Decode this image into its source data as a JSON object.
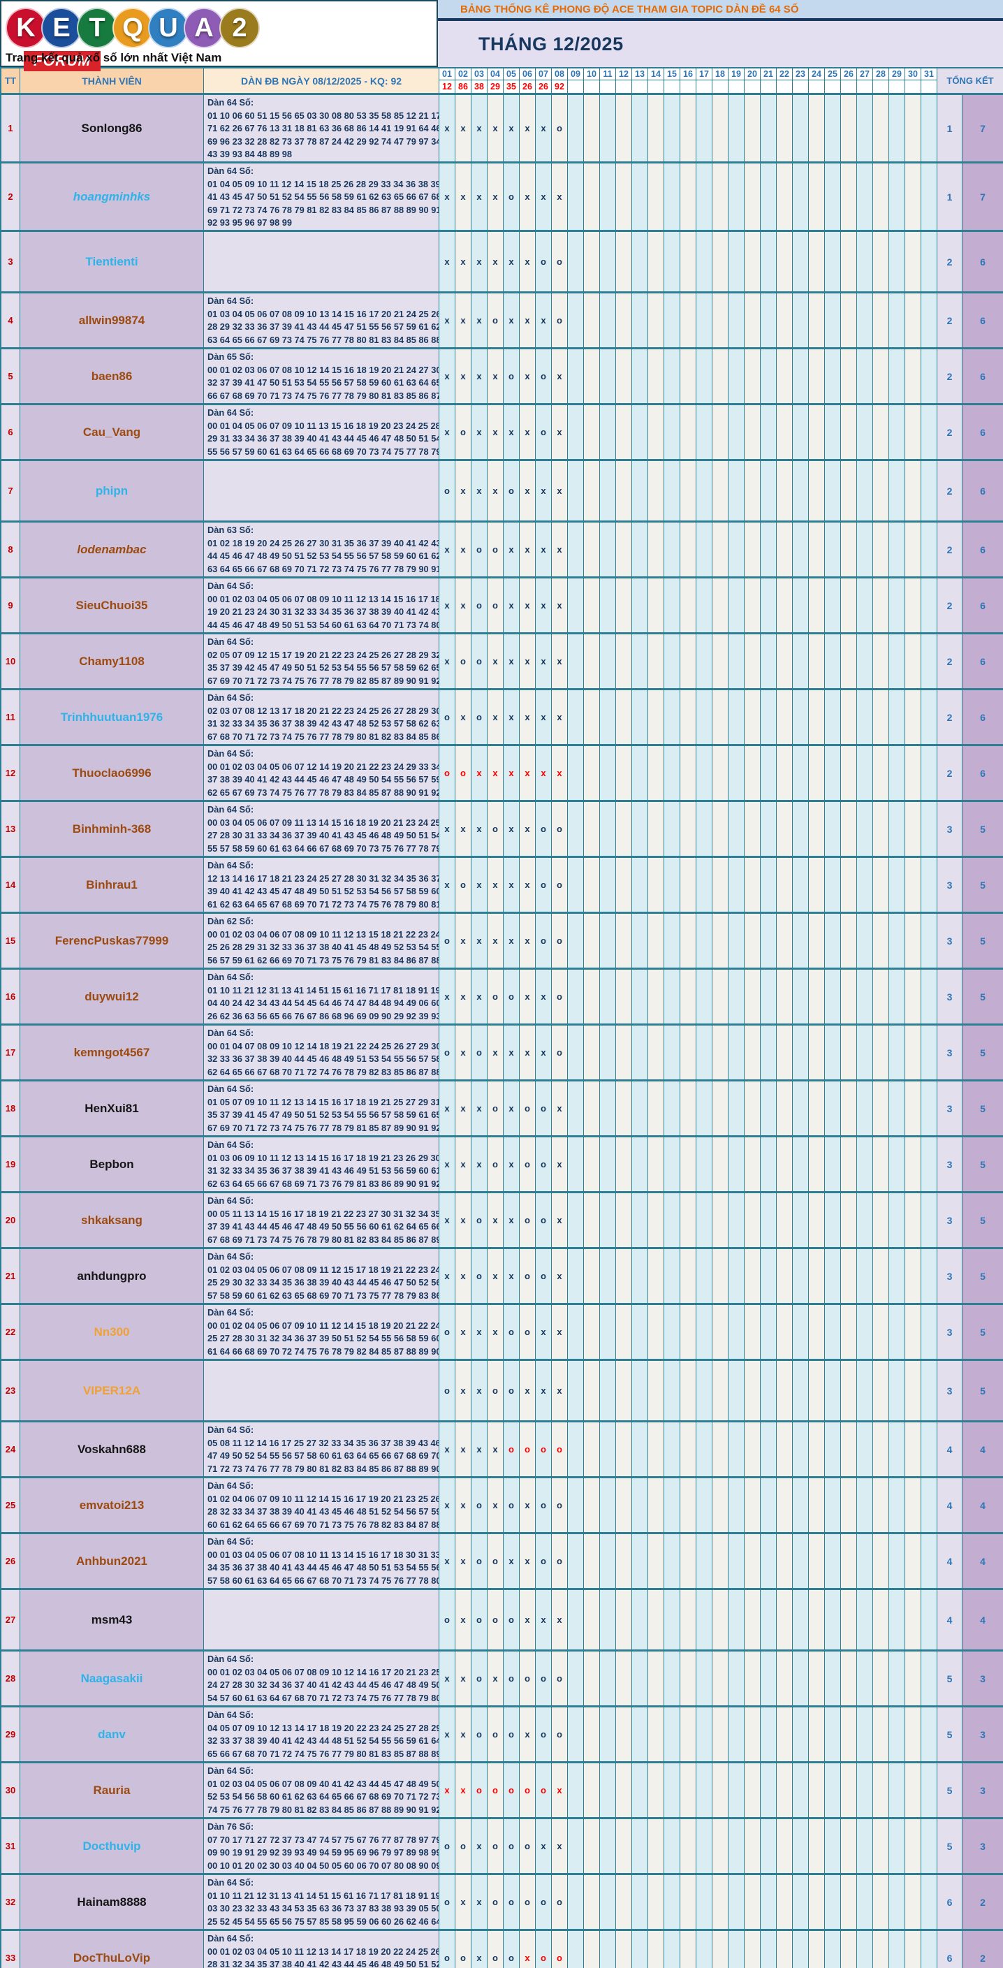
{
  "logo": {
    "letters": [
      {
        "ch": "K",
        "bg": "#c8102e"
      },
      {
        "ch": "E",
        "bg": "#1b4f9c"
      },
      {
        "ch": "T",
        "bg": "#177a3e"
      },
      {
        "ch": "Q",
        "bg": "#e89b1f"
      },
      {
        "ch": "U",
        "bg": "#2f7fc1"
      },
      {
        "ch": "A",
        "bg": "#8e5bb5"
      },
      {
        "ch": "2",
        "bg": "#9a7b1e"
      }
    ],
    "forum_label": "FORUM",
    "tagline": "Trang kết quả xổ số lớn nhất Việt Nam"
  },
  "header": {
    "title": "BẢNG THỐNG KÊ PHONG ĐỘ ACE THAM GIA TOPIC DÀN ĐỀ 64 SỐ",
    "month": "THÁNG 12/2025"
  },
  "columns": {
    "tt": "TT",
    "member": "THÀNH VIÊN",
    "dan": "DÀN ĐB NGÀY 08/12/2025 - KQ: 92",
    "total": "TỔNG KẾT"
  },
  "days": [
    "01",
    "02",
    "03",
    "04",
    "05",
    "06",
    "07",
    "08",
    "09",
    "10",
    "11",
    "12",
    "13",
    "14",
    "15",
    "16",
    "17",
    "18",
    "19",
    "20",
    "21",
    "22",
    "23",
    "24",
    "25",
    "26",
    "27",
    "28",
    "29",
    "30",
    "31"
  ],
  "results": [
    "12",
    "86",
    "38",
    "29",
    "35",
    "26",
    "26",
    "92"
  ],
  "colors": {
    "border_teal": "#2e7f93",
    "mark_navy": "#17375e",
    "mark_red": "#ff0000",
    "total_blue": "#2e75b6"
  },
  "rows": [
    {
      "tt": "1",
      "name": "Sonlong86",
      "style": "black",
      "h": 98,
      "title": "Dàn 64 Số:",
      "lines": [
        "01 10 06 60 51 15 56 65 03 30 08 80 53 35 58 85 12 21 17",
        "71 62 26 67 76 13 31 18 81 63 36 68 86 14 41 19 91 64 46",
        "69 96 23 32 28 82 73 37 78 87 24 42 29 92 74 47 79 97 34",
        "43 39 93 84 48 89 98"
      ],
      "marks": "xxxxxxxo",
      "red": "00000000",
      "t1": "1",
      "t2": "7"
    },
    {
      "tt": "2",
      "name": "hoangminhks",
      "style": "blue ital",
      "h": 98,
      "title": "Dàn 64 Số:",
      "lines": [
        "01 04 05 09 10 11 12 14 15 18 25 26 28 29 33 34 36 38 39",
        "41 43 45 47 50 51 52 54 55 56 58 59 61 62 63 65 66 67 68",
        "69 71 72 73 74 76 78 79 81 82 83 84 85 86 87 88 89 90 91",
        "92 93 95 96 97 98 99"
      ],
      "marks": "xxxxoxxx",
      "red": "00000000",
      "t1": "1",
      "t2": "7"
    },
    {
      "tt": "3",
      "name": "Tientienti",
      "style": "blue",
      "h": 88,
      "title": "",
      "lines": [],
      "marks": "xxxxxxoo",
      "red": "00000000",
      "t1": "2",
      "t2": "6"
    },
    {
      "tt": "4",
      "name": "allwin99874",
      "style": "brown",
      "h": 80,
      "title": "Dàn 64 Số:",
      "lines": [
        "01 03 04 05 06 07 08 09 10 13 14 15 16 17 20 21 24 25 26",
        "28 29 32 33 36 37 39 41 43 44 45 47 51 55 56 57 59 61 62",
        "63 64 65 66 67 69 73 74 75 76 77 78 80 81 83 84 85 86 88"
      ],
      "marks": "xxxoxxxo",
      "red": "00000000",
      "t1": "2",
      "t2": "6"
    },
    {
      "tt": "5",
      "name": "baen86",
      "style": "brown",
      "h": 80,
      "title": "Dàn 65 Số:",
      "lines": [
        "00 01 02 03 06 07 08 10 12 14 15 16 18 19 20 21 24 27 30",
        "32 37 39 41 47 50 51 53 54 55 56 57 58 59 60 61 63 64 65",
        "66 67 68 69 70 71 73 74 75 76 77 78 79 80 81 83 85 86 87"
      ],
      "marks": "xxxxoxox",
      "red": "00000000",
      "t1": "2",
      "t2": "6"
    },
    {
      "tt": "6",
      "name": "Cau_Vang",
      "style": "brown",
      "h": 80,
      "title": "Dàn 64 Số:",
      "lines": [
        "00 01 04 05 06 07 09 10 11 13 15 16 18 19 20 23 24 25 28",
        "29 31 33 34 36 37 38 39 40 41 43 44 45 46 47 48 50 51 54",
        "55 56 57 59 60 61 63 64 65 66 68 69 70 73 74 75 77 78 79"
      ],
      "marks": "xoxxxxox",
      "red": "00000000",
      "t1": "2",
      "t2": "6"
    },
    {
      "tt": "7",
      "name": "phipn",
      "style": "blue",
      "h": 88,
      "title": "",
      "lines": [],
      "marks": "oxxxoxxx",
      "red": "00000000",
      "t1": "2",
      "t2": "6"
    },
    {
      "tt": "8",
      "name": "lodenambac",
      "style": "brown ital",
      "h": 80,
      "title": "Dàn 63 Số:",
      "lines": [
        "01 02 18 19 20 24 25 26 27 30 31 35 36 37 39 40 41 42 43",
        "44 45 46 47 48 49 50 51 52 53 54 55 56 57 58 59 60 61 62",
        "63 64 65 66 67 68 69 70 71 72 73 74 75 76 77 78 79 90 91"
      ],
      "marks": "xxooxxxx",
      "red": "00000000",
      "t1": "2",
      "t2": "6"
    },
    {
      "tt": "9",
      "name": "SieuChuoi35",
      "style": "brown",
      "h": 80,
      "title": "Dàn 64 Số:",
      "lines": [
        "00 01 02 03 04 05 06 07 08 09 10 11 12 13 14 15 16 17 18",
        "19 20 21 23 24 30 31 32 33 34 35 36 37 38 39 40 41 42 43",
        "44 45 46 47 48 49 50 51 53 54 60 61 63 64 70 71 73 74 80"
      ],
      "marks": "xxooxxxx",
      "red": "00000000",
      "t1": "2",
      "t2": "6"
    },
    {
      "tt": "10",
      "name": "Chamy1108",
      "style": "brown",
      "h": 80,
      "title": "Dàn 64 Số:",
      "lines": [
        "02 05 07 09 12 15 17 19 20 21 22 23 24 25 26 27 28 29 32",
        "35 37 39 42 45 47 49 50 51 52 53 54 55 56 57 58 59 62 65",
        "67 69 70 71 72 73 74 75 76 77 78 79 82 85 87 89 90 91 92"
      ],
      "marks": "xooxxxxx",
      "red": "00000000",
      "t1": "2",
      "t2": "6"
    },
    {
      "tt": "11",
      "name": "Trinhhuutuan1976",
      "style": "blue",
      "h": 80,
      "title": "Dàn 64 Số:",
      "lines": [
        "02 03 07 08 12 13 17 18 20 21 22 23 24 25 26 27 28 29 30",
        "31 32 33 34 35 36 37 38 39 42 43 47 48 52 53 57 58 62 63",
        "67 68 70 71 72 73 74 75 76 77 78 79 80 81 82 83 84 85 86"
      ],
      "marks": "oxoxxxxx",
      "red": "00000000",
      "t1": "2",
      "t2": "6"
    },
    {
      "tt": "12",
      "name": "Thuoclao6996",
      "style": "brown",
      "h": 80,
      "title": "Dàn 64 Số:",
      "lines": [
        "00 01 02 03 04 05 06 07 12 14 19 20 21 22 23 24 29 33 34",
        "37 38 39 40 41 42 43 44 45 46 47 48 49 50 54 55 56 57 59",
        "62 65 67 69 73 74 75 76 77 78 79 83 84 85 87 88 90 91 92"
      ],
      "marks": "ooxxxxxx",
      "red": "11111111",
      "t1": "2",
      "t2": "6"
    },
    {
      "tt": "13",
      "name": "Binhminh-368",
      "style": "brown",
      "h": 80,
      "title": "Dàn 64 Số:",
      "lines": [
        "00 03 04 05 06 07 09 11 13 14 15 16 18 19 20 21 23 24 25",
        "27 28 30 31 33 34 36 37 39 40 41 43 45 46 48 49 50 51 54",
        "55 57 58 59 60 61 63 64 66 67 68 69 70 73 75 76 77 78 79"
      ],
      "marks": "xxxoxxoo",
      "red": "00000000",
      "t1": "3",
      "t2": "5"
    },
    {
      "tt": "14",
      "name": "Binhrau1",
      "style": "brown",
      "h": 80,
      "title": "Dàn 64 Số:",
      "lines": [
        "12 13 14 16 17 18 21 23 24 25 27 28 30 31 32 34 35 36 37",
        "39 40 41 42 43 45 47 48 49 50 51 52 53 54 56 57 58 59 60",
        "61 62 63 64 65 67 68 69 70 71 72 73 74 75 76 78 79 80 81"
      ],
      "marks": "xoxxxxoo",
      "red": "00000000",
      "t1": "3",
      "t2": "5"
    },
    {
      "tt": "15",
      "name": "FerencPuskas77999",
      "style": "brown",
      "h": 80,
      "title": "Dàn 62 Số:",
      "lines": [
        "00 01 02 03 04 06 07 08 09 10 11 12 13 15 18 21 22 23 24",
        "25 26 28 29 31 32 33 36 37 38 40 41 45 48 49 52 53 54 55",
        "56 57 59 61 62 66 69 70 71 73 75 76 79 81 83 84 86 87 88"
      ],
      "marks": "oxxxxxoo",
      "red": "00000000",
      "t1": "3",
      "t2": "5"
    },
    {
      "tt": "16",
      "name": "duywui12",
      "style": "brown",
      "h": 80,
      "title": "Dàn 64 Số:",
      "lines": [
        "01 10 11 21 12 31 13 41 14 51 15 61 16 71 17 81 18 91 19",
        "04 40 24 42 34 43 44 54 45 64 46 74 47 84 48 94 49 06 60",
        "26 62 36 63 56 65 66 76 67 86 68 96 69 09 90 29 92 39 93"
      ],
      "marks": "xxxooxxo",
      "red": "00000000",
      "t1": "3",
      "t2": "5"
    },
    {
      "tt": "17",
      "name": "kemngot4567",
      "style": "brown",
      "h": 80,
      "title": "Dàn 64 Số:",
      "lines": [
        "00 01 04 07 08 09 10 12 14 18 19 21 22 24 25 26 27 29 30",
        "32 33 36 37 38 39 40 44 45 46 48 49 51 53 54 55 56 57 58",
        "62 64 65 66 67 68 70 71 72 74 76 78 79 82 83 85 86 87 88"
      ],
      "marks": "oxoxxxxo",
      "red": "00000000",
      "t1": "3",
      "t2": "5"
    },
    {
      "tt": "18",
      "name": "HenXui81",
      "style": "black",
      "h": 80,
      "title": "Dàn 64 Số:",
      "lines": [
        "01 05 07 09 10 11 12 13 14 15 16 17 18 19 21 25 27 29 31",
        "35 37 39 41 45 47 49 50 51 52 53 54 55 56 57 58 59 61 65",
        "67 69 70 71 72 73 74 75 76 77 78 79 81 85 87 89 90 91 92"
      ],
      "marks": "xxxoxoox",
      "red": "00000000",
      "t1": "3",
      "t2": "5"
    },
    {
      "tt": "19",
      "name": "Bepbon",
      "style": "black",
      "h": 80,
      "title": "Dàn 64 Số:",
      "lines": [
        "01 03 06 09 10 11 12 13 14 15 16 17 18 19 21 23 26 29 30",
        "31 32 33 34 35 36 37 38 39 41 43 46 49 51 53 56 59 60 61",
        "62 63 64 65 66 67 68 69 71 73 76 79 81 83 86 89 90 91 92"
      ],
      "marks": "xxxoxoox",
      "red": "00000000",
      "t1": "3",
      "t2": "5"
    },
    {
      "tt": "20",
      "name": "shkaksang",
      "style": "brown",
      "h": 80,
      "title": "Dàn 64 Số:",
      "lines": [
        "00 05 11 13 14 15 16 17 18 19 21 22 23 27 30 31 32 34 35",
        "37 39 41 43 44 45 46 47 48 49 50 55 56 60 61 62 64 65 66",
        "67 68 69 71 73 74 75 76 78 79 80 81 82 83 84 85 86 87 89"
      ],
      "marks": "xxoxxoox",
      "red": "00000000",
      "t1": "3",
      "t2": "5"
    },
    {
      "tt": "21",
      "name": "anhdungpro",
      "style": "black",
      "h": 80,
      "title": "Dàn 64 Số:",
      "lines": [
        "01 02 03 04 05 06 07 08 09 11 12 15 17 18 19 21 22 23 24",
        "25 29 30 32 33 34 35 36 38 39 40 43 44 45 46 47 50 52 56",
        "57 58 59 60 61 62 63 65 68 69 70 71 73 75 77 78 79 83 86"
      ],
      "marks": "xxoxxoox",
      "red": "00000000",
      "t1": "3",
      "t2": "5"
    },
    {
      "tt": "22",
      "name": "Nn300",
      "style": "orange",
      "h": 80,
      "title": "Dàn 64 Số:",
      "lines": [
        "00 01 02 04 05 06 07 09 10 11 12 14 15 18 19 20 21 22 24",
        "25 27 28 30 31 32 34 36 37 39 50 51 52 54 55 56 58 59 60",
        "61 64 66 68 69 70 72 74 75 76 78 79 82 84 85 87 88 89 90"
      ],
      "marks": "oxxxooxx",
      "red": "00000000",
      "t1": "3",
      "t2": "5"
    },
    {
      "tt": "23",
      "name": "VIPER12A",
      "style": "orange",
      "h": 88,
      "title": "",
      "lines": [],
      "marks": "oxxooxxx",
      "red": "00000000",
      "t1": "3",
      "t2": "5"
    },
    {
      "tt": "24",
      "name": "Voskahn688",
      "style": "black",
      "h": 80,
      "title": "Dàn 64 Số:",
      "lines": [
        "05 08 11 12 14 16 17 25 27 32 33 34 35 36 37 38 39 43 46",
        "47 49 50 52 54 55 56 57 58 60 61 63 64 65 66 67 68 69 70",
        "71 72 73 74 76 77 78 79 80 81 82 83 84 85 86 87 88 89 90"
      ],
      "marks": "xxxxoooo",
      "red": "00001111",
      "t1": "4",
      "t2": "4"
    },
    {
      "tt": "25",
      "name": "emvatoi213",
      "style": "brown",
      "h": 80,
      "title": "Dàn 64 Số:",
      "lines": [
        "01 02 04 06 07 09 10 11 12 14 15 16 17 19 20 21 23 25 26",
        "28 32 33 34 37 38 39 40 41 43 45 46 48 51 52 54 56 57 59",
        "60 61 62 64 65 66 67 69 70 71 73 75 76 78 82 83 84 87 88"
      ],
      "marks": "xxoxoxoo",
      "red": "00000000",
      "t1": "4",
      "t2": "4"
    },
    {
      "tt": "26",
      "name": "Anhbun2021",
      "style": "brown",
      "h": 80,
      "title": "Dàn 64 Số:",
      "lines": [
        "00 01 03 04 05 06 07 08 10 11 13 14 15 16 17 18 30 31 33",
        "34 35 36 37 38 40 41 43 44 45 46 47 48 50 51 53 54 55 56",
        "57 58 60 61 63 64 65 66 67 68 70 71 73 74 75 76 77 78 80"
      ],
      "marks": "xxooxxoo",
      "red": "00000000",
      "t1": "4",
      "t2": "4"
    },
    {
      "tt": "27",
      "name": "msm43",
      "style": "black",
      "h": 88,
      "title": "",
      "lines": [],
      "marks": "oxoooxxx",
      "red": "00000000",
      "t1": "4",
      "t2": "4"
    },
    {
      "tt": "28",
      "name": "Naagasakii",
      "style": "blue",
      "h": 80,
      "title": "Dàn 64 Số:",
      "lines": [
        "00 01 02 03 04 05 06 07 08 09 10 12 14 16 17 20 21 23 25",
        "24 27 28 30 32 34 36 37 40 41 42 43 44 45 46 47 48 49 50",
        "54 57 60 61 63 64 67 68 70 71 72 73 74 75 76 77 78 79 80"
      ],
      "marks": "xxoxoooo",
      "red": "00000000",
      "t1": "5",
      "t2": "3"
    },
    {
      "tt": "29",
      "name": "danv",
      "style": "blue",
      "h": 80,
      "title": "Dàn 64 Số:",
      "lines": [
        "04 05 07 09 10 12 13 14 17 18 19 20 22 23 24 25 27 28 29",
        "32 33 37 38 39 40 41 42 43 44 48 51 52 54 55 56 59 61 64",
        "65 66 67 68 70 71 72 74 75 76 77 79 80 81 83 85 87 88 89"
      ],
      "marks": "xxoooxoo",
      "red": "00000000",
      "t1": "5",
      "t2": "3"
    },
    {
      "tt": "30",
      "name": "Rauria",
      "style": "brown",
      "h": 80,
      "title": "Dàn 64 Số:",
      "lines": [
        "01 02 03 04 05 06 07 08 09 40 41 42 43 44 45 47 48 49 50",
        "52 53 54 56 58 60 61 62 63 64 65 66 67 68 69 70 71 72 73",
        "74 75 76 77 78 79 80 81 82 83 84 85 86 87 88 89 90 91 92"
      ],
      "marks": "xxooooox",
      "red": "11111111",
      "t1": "5",
      "t2": "3"
    },
    {
      "tt": "31",
      "name": "Docthuvip",
      "style": "blue",
      "h": 80,
      "title": "Dàn 76 Số:",
      "lines": [
        "07 70 17 71 27 72 37 73 47 74 57 75 67 76 77 87 78 97 79",
        "09 90 19 91 29 92 39 93 49 94 59 95 69 96 79 97 89 98 99",
        "00 10 01 20 02 30 03 40 04 50 05 60 06 70 07 80 08 90 09"
      ],
      "marks": "ooxoooxx",
      "red": "00000000",
      "t1": "5",
      "t2": "3"
    },
    {
      "tt": "32",
      "name": "Hainam8888",
      "style": "black",
      "h": 80,
      "title": "Dàn 64 Số:",
      "lines": [
        "01 10 11 21 12 31 13 41 14 51 15 61 16 71 17 81 18 91 19",
        "03 30 23 32 33 43 34 53 35 63 36 73 37 83 38 93 39 05 50",
        "25 52 45 54 55 65 56 75 57 85 58 95 59 06 60 26 62 46 64"
      ],
      "marks": "oxxooooo",
      "red": "00000000",
      "t1": "6",
      "t2": "2"
    },
    {
      "tt": "33",
      "name": "DocThuLoVip",
      "style": "brown",
      "h": 80,
      "title": "Dàn 64 Số:",
      "lines": [
        "00 01 02 03 04 05 10 11 12 13 14 17 18 19 20 22 24 25 26",
        "28 31 32 34 35 37 38 40 41 42 43 44 45 46 48 49 50 51 52",
        "54 56 57 58 60 61 62 64 65 66 68 70 71 72 74 75 76 78 80"
      ],
      "marks": "ooxooxoo",
      "red": "00000111",
      "t1": "6",
      "t2": "2"
    }
  ]
}
